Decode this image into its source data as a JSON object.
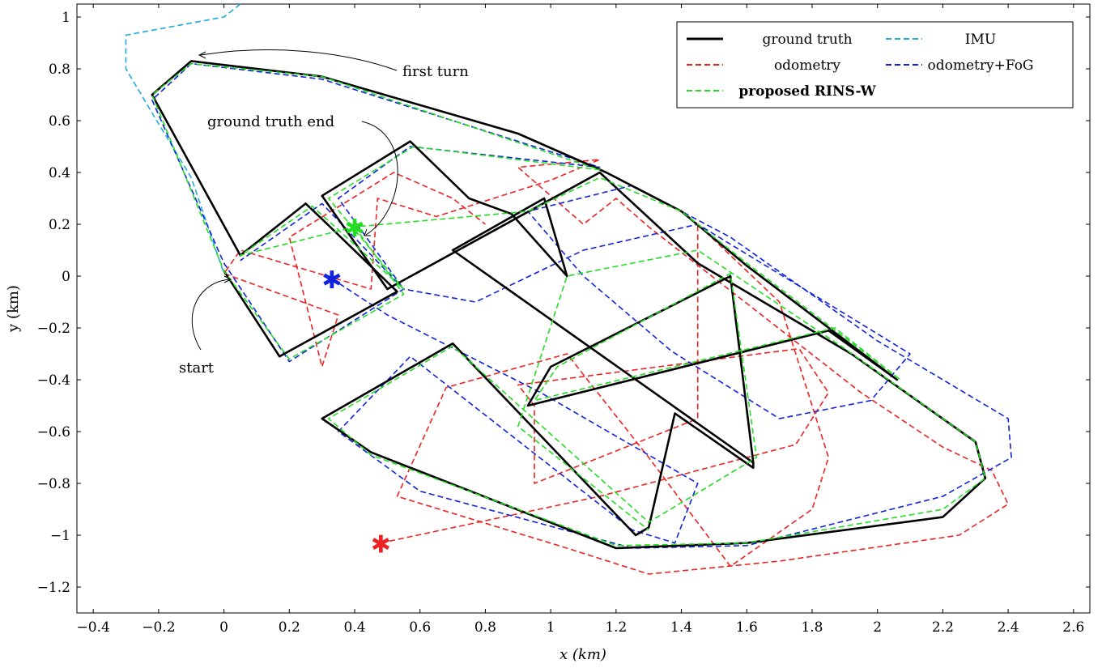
{
  "chart_data": {
    "type": "line",
    "title": "",
    "xlabel": "x (km)",
    "ylabel": "y (km)",
    "xlim": [
      -0.45,
      2.65
    ],
    "ylim": [
      -1.3,
      1.05
    ],
    "grid": false,
    "legend_position": "top-right",
    "x_ticks": [
      -0.4,
      -0.2,
      0,
      0.2,
      0.4,
      0.6,
      0.8,
      1,
      1.2,
      1.4,
      1.6,
      1.8,
      2,
      2.2,
      2.4,
      2.6
    ],
    "x_tick_labels": [
      "−0.4",
      "−0.2",
      "0",
      "0.2",
      "0.4",
      "0.6",
      "0.8",
      "1",
      "1.2",
      "1.4",
      "1.6",
      "1.8",
      "2",
      "2.2",
      "2.4",
      "2.6"
    ],
    "y_ticks": [
      1,
      0.8,
      0.6,
      0.4,
      0.2,
      0,
      -0.2,
      -0.4,
      -0.6,
      -0.8,
      -1,
      -1.2
    ],
    "y_tick_labels": [
      "1",
      "0.8",
      "0.6",
      "0.4",
      "0.2",
      "0",
      "−0.2",
      "−0.4",
      "−0.6",
      "−0.8",
      "−1",
      "−1.2"
    ],
    "series": [
      {
        "name": "ground truth",
        "color": "#000000",
        "style": "solid",
        "bold": false,
        "points": [
          [
            0,
            0.02
          ],
          [
            0.17,
            -0.31
          ],
          [
            0.53,
            -0.06
          ],
          [
            0.3,
            0.22
          ],
          [
            0.25,
            0.28
          ],
          [
            0.05,
            0.08
          ],
          [
            -0.22,
            0.7
          ],
          [
            -0.1,
            0.83
          ],
          [
            0.3,
            0.77
          ],
          [
            0.9,
            0.55
          ],
          [
            1.17,
            0.4
          ],
          [
            1.4,
            0.25
          ],
          [
            1.6,
            0.04
          ],
          [
            2.06,
            -0.4
          ],
          [
            1.85,
            -0.21
          ],
          [
            0.93,
            -0.5
          ],
          [
            1.0,
            -0.35
          ],
          [
            1.55,
            0.0
          ],
          [
            1.62,
            -0.72
          ],
          [
            1.62,
            -0.74
          ],
          [
            1.38,
            -0.53
          ],
          [
            1.3,
            -0.97
          ],
          [
            1.26,
            -1.0
          ],
          [
            0.7,
            -0.26
          ],
          [
            0.3,
            -0.55
          ],
          [
            0.45,
            -0.68
          ],
          [
            1.2,
            -1.05
          ],
          [
            1.6,
            -1.03
          ],
          [
            2.2,
            -0.93
          ],
          [
            2.33,
            -0.78
          ],
          [
            2.3,
            -0.64
          ],
          [
            1.92,
            -0.3
          ],
          [
            1.45,
            0.05
          ],
          [
            1.15,
            0.4
          ],
          [
            0.5,
            -0.05
          ],
          [
            0.3,
            0.31
          ],
          [
            0.57,
            0.52
          ],
          [
            0.75,
            0.3
          ],
          [
            0.88,
            0.24
          ],
          [
            1.05,
            0.0
          ],
          [
            0.98,
            0.3
          ],
          [
            0.7,
            0.1
          ],
          [
            1.62,
            -0.72
          ]
        ]
      },
      {
        "name": "odometry",
        "color": "#ee2222",
        "style": "dashed",
        "bold": false,
        "points": [
          [
            0.48,
            -1.03
          ],
          [
            1.15,
            -0.85
          ],
          [
            1.75,
            -0.65
          ],
          [
            1.85,
            -0.45
          ],
          [
            1.76,
            -0.28
          ],
          [
            0.9,
            -0.42
          ],
          [
            0.95,
            -0.5
          ],
          [
            0.95,
            -0.8
          ],
          [
            1.45,
            -0.55
          ],
          [
            1.45,
            0.2
          ],
          [
            1.7,
            -0.1
          ],
          [
            1.85,
            -0.7
          ],
          [
            1.8,
            -0.9
          ],
          [
            1.55,
            -1.12
          ],
          [
            1.3,
            -0.7
          ],
          [
            1.05,
            -0.3
          ],
          [
            0.68,
            -0.43
          ],
          [
            0.53,
            -0.85
          ],
          [
            1.05,
            -1.05
          ],
          [
            1.3,
            -1.15
          ],
          [
            1.7,
            -1.1
          ],
          [
            2.25,
            -1.0
          ],
          [
            2.4,
            -0.88
          ],
          [
            2.35,
            -0.75
          ],
          [
            2.2,
            -0.66
          ],
          [
            1.95,
            -0.45
          ],
          [
            1.3,
            0.19
          ],
          [
            1.2,
            0.3
          ],
          [
            1.1,
            0.2
          ],
          [
            0.9,
            0.42
          ],
          [
            1.15,
            0.45
          ],
          [
            1.0,
            0.37
          ],
          [
            0.65,
            0.23
          ],
          [
            0.47,
            0.3
          ],
          [
            0.45,
            -0.05
          ],
          [
            0.05,
            0.1
          ],
          [
            0.0,
            0.01
          ],
          [
            0.35,
            -0.15
          ],
          [
            0.3,
            -0.35
          ],
          [
            0.2,
            0.15
          ],
          [
            0.52,
            0.4
          ],
          [
            0.7,
            0.3
          ],
          [
            0.8,
            0.2
          ]
        ]
      },
      {
        "name": "IMU",
        "color": "#22aadd",
        "style": "dashed",
        "bold": false,
        "points": [
          [
            0.05,
            1.05
          ],
          [
            0.0,
            1.0
          ],
          [
            -0.3,
            0.93
          ],
          [
            -0.3,
            0.8
          ],
          [
            -0.22,
            0.63
          ],
          [
            -0.1,
            0.38
          ],
          [
            0,
            0.01
          ]
        ]
      },
      {
        "name": "odometry+FoG",
        "color": "#1122dd",
        "style": "dashed",
        "bold": false,
        "points": [
          [
            0.33,
            -0.01
          ],
          [
            0.5,
            -0.15
          ],
          [
            0.97,
            -0.45
          ],
          [
            1.45,
            -0.8
          ],
          [
            1.38,
            -1.03
          ],
          [
            1.25,
            -0.98
          ],
          [
            0.57,
            -0.31
          ],
          [
            0.35,
            -0.6
          ],
          [
            0.6,
            -0.83
          ],
          [
            1.25,
            -1.05
          ],
          [
            1.6,
            -1.04
          ],
          [
            2.2,
            -0.85
          ],
          [
            2.41,
            -0.7
          ],
          [
            2.4,
            -0.55
          ],
          [
            2.0,
            -0.25
          ],
          [
            1.55,
            0.15
          ],
          [
            1.25,
            0.35
          ],
          [
            0.93,
            0.25
          ],
          [
            1.1,
            0.0
          ],
          [
            1.37,
            -0.29
          ],
          [
            1.7,
            -0.55
          ],
          [
            1.98,
            -0.48
          ],
          [
            2.1,
            -0.3
          ],
          [
            1.88,
            -0.13
          ],
          [
            1.45,
            0.2
          ],
          [
            1.1,
            0.1
          ],
          [
            0.77,
            -0.1
          ],
          [
            0.55,
            -0.05
          ],
          [
            0.2,
            -0.33
          ],
          [
            0.0,
            0.05
          ],
          [
            -0.22,
            0.68
          ],
          [
            -0.1,
            0.82
          ],
          [
            0.3,
            0.76
          ],
          [
            1.15,
            0.42
          ],
          [
            0.57,
            0.5
          ],
          [
            0.35,
            0.3
          ],
          [
            0.55,
            -0.05
          ],
          [
            0.3,
            0.28
          ],
          [
            0.05,
            0.06
          ]
        ]
      },
      {
        "name": "proposed RINS-W",
        "color": "#22dd22",
        "style": "dashed",
        "bold": true,
        "points": [
          [
            0.4,
            0.19
          ],
          [
            0.55,
            -0.07
          ],
          [
            0.2,
            -0.32
          ],
          [
            0,
            0.02
          ],
          [
            -0.22,
            0.7
          ],
          [
            -0.1,
            0.82
          ],
          [
            0.3,
            0.77
          ],
          [
            1.15,
            0.41
          ],
          [
            0.58,
            0.5
          ],
          [
            0.32,
            0.3
          ],
          [
            0.55,
            -0.05
          ],
          [
            0.27,
            0.27
          ],
          [
            0.05,
            0.08
          ],
          [
            0.4,
            0.19
          ],
          [
            0.93,
            0.25
          ],
          [
            1.15,
            0.38
          ],
          [
            1.4,
            0.25
          ],
          [
            1.6,
            0.05
          ],
          [
            2.07,
            -0.4
          ],
          [
            1.87,
            -0.2
          ],
          [
            0.95,
            -0.48
          ],
          [
            1.02,
            -0.35
          ],
          [
            1.55,
            0.01
          ],
          [
            1.63,
            -0.7
          ],
          [
            1.3,
            -0.95
          ],
          [
            0.7,
            -0.27
          ],
          [
            0.32,
            -0.55
          ],
          [
            0.45,
            -0.69
          ],
          [
            1.2,
            -1.04
          ],
          [
            1.6,
            -1.03
          ],
          [
            2.2,
            -0.9
          ],
          [
            2.33,
            -0.78
          ],
          [
            2.3,
            -0.64
          ],
          [
            1.9,
            -0.28
          ],
          [
            1.45,
            0.1
          ],
          [
            1.05,
            0.0
          ],
          [
            0.9,
            -0.58
          ],
          [
            1.3,
            -0.98
          ]
        ]
      }
    ],
    "markers": [
      {
        "series": "odometry",
        "x": 0.48,
        "y": -1.03
      },
      {
        "series": "odometry+FoG",
        "x": 0.33,
        "y": -0.01
      },
      {
        "series": "proposed RINS-W",
        "x": 0.4,
        "y": 0.19
      }
    ],
    "legend_labels": {
      "ground_truth": "ground truth",
      "imu": "IMU",
      "odometry": "odometry",
      "odometry_fog": "odometry+FoG",
      "rins_w": "proposed RINS-W"
    },
    "annotations": {
      "first_turn": "first turn",
      "ground_truth_end": "ground truth end",
      "start": "start"
    }
  }
}
